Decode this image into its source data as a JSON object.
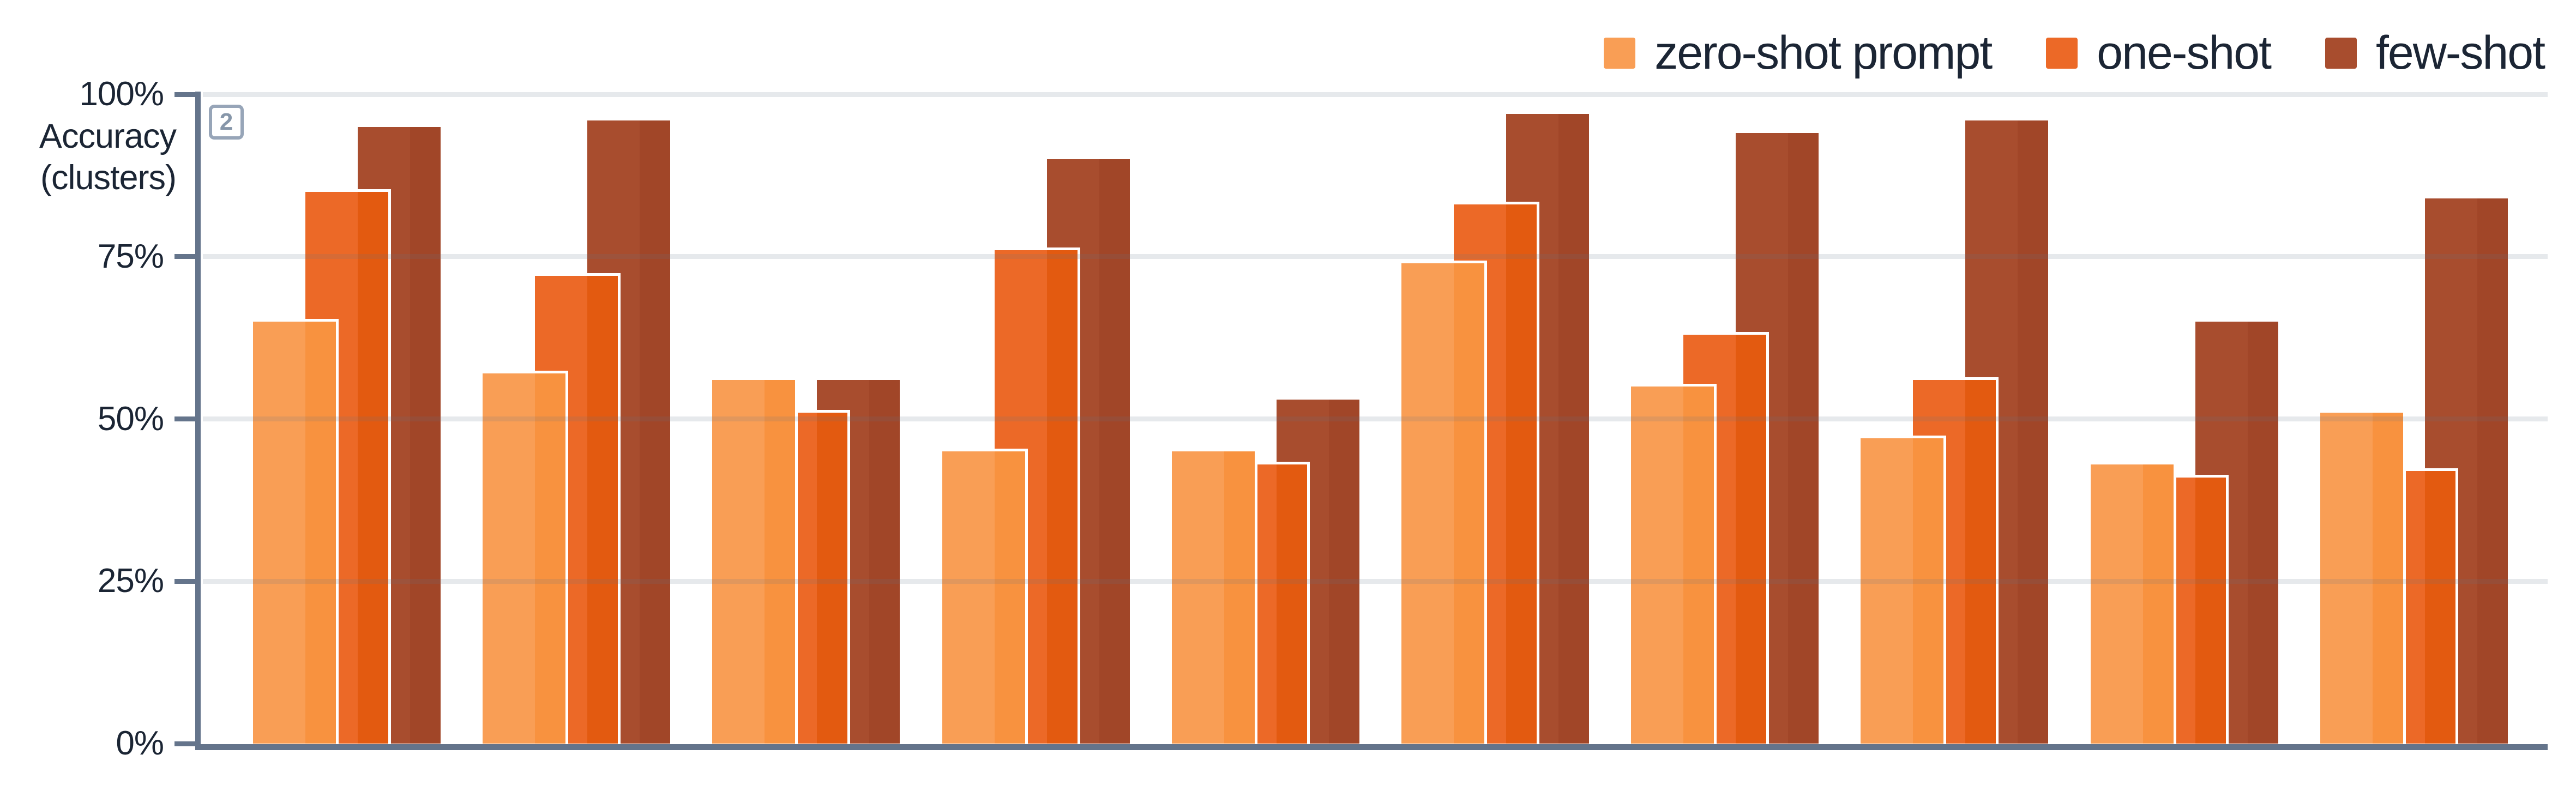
{
  "chart_data": {
    "type": "bar",
    "title": "",
    "ylabel": "Accuracy (clusters)",
    "ylabel_lines": [
      "Accuracy",
      "(clusters)"
    ],
    "y_ticks": [
      {
        "label": "100%",
        "value": 100
      },
      {
        "label": "75%",
        "value": 75
      },
      {
        "label": "50%",
        "value": 50
      },
      {
        "label": "25%",
        "value": 25
      },
      {
        "label": "0%",
        "value": 0
      }
    ],
    "ylim": [
      0,
      100
    ],
    "grid": "horizontal",
    "gridlines_over_bars": true,
    "legend_position": "top-right",
    "categories": [
      "",
      "",
      "",
      "",
      "",
      "",
      "",
      "",
      "",
      ""
    ],
    "series": [
      {
        "name": "zero-shot prompt",
        "color": "#F99E55",
        "color_overlap": "#F8923F",
        "values": [
          65,
          57,
          56,
          45,
          45,
          74,
          55,
          47,
          43,
          51
        ]
      },
      {
        "name": "one-shot",
        "color": "#EC6927",
        "color_overlap": "#E35A10",
        "values": [
          85,
          72,
          51,
          76,
          43,
          83,
          63,
          56,
          41,
          42
        ]
      },
      {
        "name": "few-shot",
        "color": "#A84D2E",
        "color_overlap": "#A14628",
        "values": [
          95,
          96,
          56,
          90,
          53,
          97,
          94,
          96,
          65,
          84
        ]
      }
    ]
  },
  "annotation_badge": {
    "label": "2"
  },
  "axis_style": {
    "axis_color": "#64748B",
    "grid_color": "rgba(100,116,139,0.16)",
    "text_color": "#1B2534",
    "badge_border_color": "#97A5B8",
    "badge_text_color": "#8696A9"
  }
}
